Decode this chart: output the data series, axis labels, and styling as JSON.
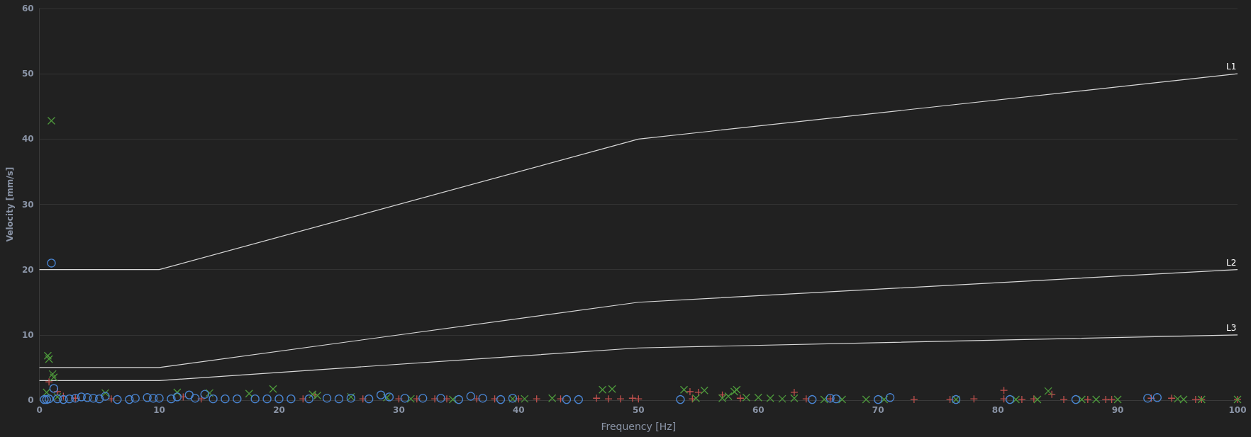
{
  "chart_data": {
    "type": "scatter",
    "xlabel": "Frequency [Hz]",
    "ylabel": "Velocity [mm/s]",
    "xlim": [
      0,
      100
    ],
    "xticks": [
      0,
      10,
      20,
      30,
      40,
      50,
      60,
      70,
      80,
      90,
      100
    ],
    "ylim": [
      0,
      60
    ],
    "yticks": [
      0,
      10,
      20,
      30,
      40,
      50,
      60
    ],
    "grid": "y",
    "series": [
      {
        "type": "line",
        "name": "L1",
        "color": "#d9d9d9",
        "x": [
          0,
          10,
          50,
          100
        ],
        "values": [
          20,
          20,
          40,
          50
        ]
      },
      {
        "type": "line",
        "name": "L2",
        "color": "#d9d9d9",
        "x": [
          0,
          10,
          50,
          100
        ],
        "values": [
          5,
          5,
          15,
          20
        ]
      },
      {
        "type": "line",
        "name": "L3",
        "color": "#d9d9d9",
        "x": [
          0,
          10,
          50,
          100
        ],
        "values": [
          3,
          3,
          8,
          10
        ]
      },
      {
        "color": "#c0504d",
        "marker": "plus",
        "x": [
          0.8,
          1.5,
          2,
          3,
          6,
          12,
          13.5,
          22,
          23,
          27,
          30,
          31.5,
          33,
          34,
          36.5,
          38,
          40,
          41.5,
          43.5,
          46.5,
          47.5,
          48.5,
          49.5,
          50,
          54.5,
          54.3,
          55,
          57,
          58.5,
          63,
          64,
          66,
          73,
          76,
          78,
          80.5,
          80.5,
          82,
          83,
          84.5,
          85.5,
          87.5,
          89,
          89.5,
          92.8,
          94.5,
          96.5,
          97,
          100
        ],
        "values": [
          2.8,
          1.3,
          0.6,
          0.3,
          0.2,
          0.5,
          0.2,
          0.2,
          0.8,
          0.2,
          0.2,
          0.2,
          0.2,
          0.2,
          0.2,
          0.2,
          0.2,
          0.2,
          0.2,
          0.3,
          0.2,
          0.2,
          0.3,
          0.2,
          0.2,
          1.3,
          1.2,
          0.8,
          0.3,
          1.2,
          0.2,
          0.2,
          0.1,
          0.1,
          0.2,
          1.5,
          0.2,
          0.1,
          0.2,
          0.9,
          0.1,
          0.1,
          0.1,
          0.1,
          0.3,
          0.3,
          0.1,
          0.1,
          0.1
        ]
      },
      {
        "color": "#4e9a3c",
        "marker": "cross",
        "x": [
          0.7,
          0.8,
          1,
          1.1,
          1.2,
          0.6,
          1.5,
          5.5,
          11.5,
          14.2,
          17.5,
          19.5,
          22.8,
          23.2,
          26,
          29,
          31,
          34.5,
          39.5,
          40.5,
          42.8,
          47,
          47.8,
          53.8,
          54.8,
          55.5,
          57,
          57.5,
          58,
          58.2,
          59,
          60,
          61,
          62,
          63,
          65.5,
          67,
          69,
          70.5,
          76.5,
          81.5,
          83.3,
          84.2,
          87,
          88.2,
          90,
          95,
          95.5,
          97,
          100
        ],
        "values": [
          6.8,
          6.3,
          42.8,
          4,
          3.5,
          1.2,
          0.5,
          1.1,
          1.2,
          1.1,
          1,
          1.7,
          0.9,
          0.7,
          0.5,
          0.4,
          0.2,
          0.1,
          0.2,
          0.2,
          0.3,
          1.6,
          1.7,
          1.6,
          0.3,
          1.5,
          0.3,
          0.6,
          1.3,
          1.6,
          0.4,
          0.4,
          0.3,
          0.2,
          0.3,
          0.1,
          0.1,
          0.1,
          0.1,
          0.1,
          0.1,
          0.1,
          1.4,
          0.1,
          0.1,
          0.1,
          0.2,
          0.1,
          0.1,
          0.1
        ]
      },
      {
        "color": "#4a86d4",
        "marker": "circle",
        "x": [
          0.4,
          0.6,
          0.8,
          1,
          1.2,
          1.5,
          2,
          2.5,
          3,
          3.5,
          4,
          4.5,
          5,
          5.5,
          6.5,
          7.5,
          8,
          9,
          9.5,
          10,
          11,
          11.5,
          12.5,
          13,
          13.8,
          14.5,
          15.5,
          16.5,
          18,
          19,
          20,
          21,
          22.5,
          24,
          25,
          26,
          27.5,
          28.5,
          29.2,
          30.5,
          32,
          33.5,
          35,
          36,
          37,
          38.5,
          39.5,
          44,
          45,
          53.5,
          64.5,
          66,
          66.5,
          70,
          71,
          76.5,
          81,
          86.5,
          92.5,
          93.3
        ],
        "values": [
          0.1,
          0.1,
          0.2,
          21,
          1.8,
          0.2,
          0.1,
          0.2,
          0.3,
          0.5,
          0.4,
          0.3,
          0.2,
          0.6,
          0.1,
          0.1,
          0.3,
          0.4,
          0.3,
          0.3,
          0.2,
          0.5,
          0.8,
          0.3,
          0.9,
          0.2,
          0.2,
          0.2,
          0.2,
          0.2,
          0.2,
          0.2,
          0.2,
          0.3,
          0.2,
          0.3,
          0.2,
          0.8,
          0.5,
          0.3,
          0.3,
          0.3,
          0.1,
          0.6,
          0.3,
          0.1,
          0.3,
          0.1,
          0.1,
          0.1,
          0.1,
          0.3,
          0.2,
          0.1,
          0.4,
          0.1,
          0.1,
          0.1,
          0.3,
          0.4
        ]
      }
    ]
  }
}
